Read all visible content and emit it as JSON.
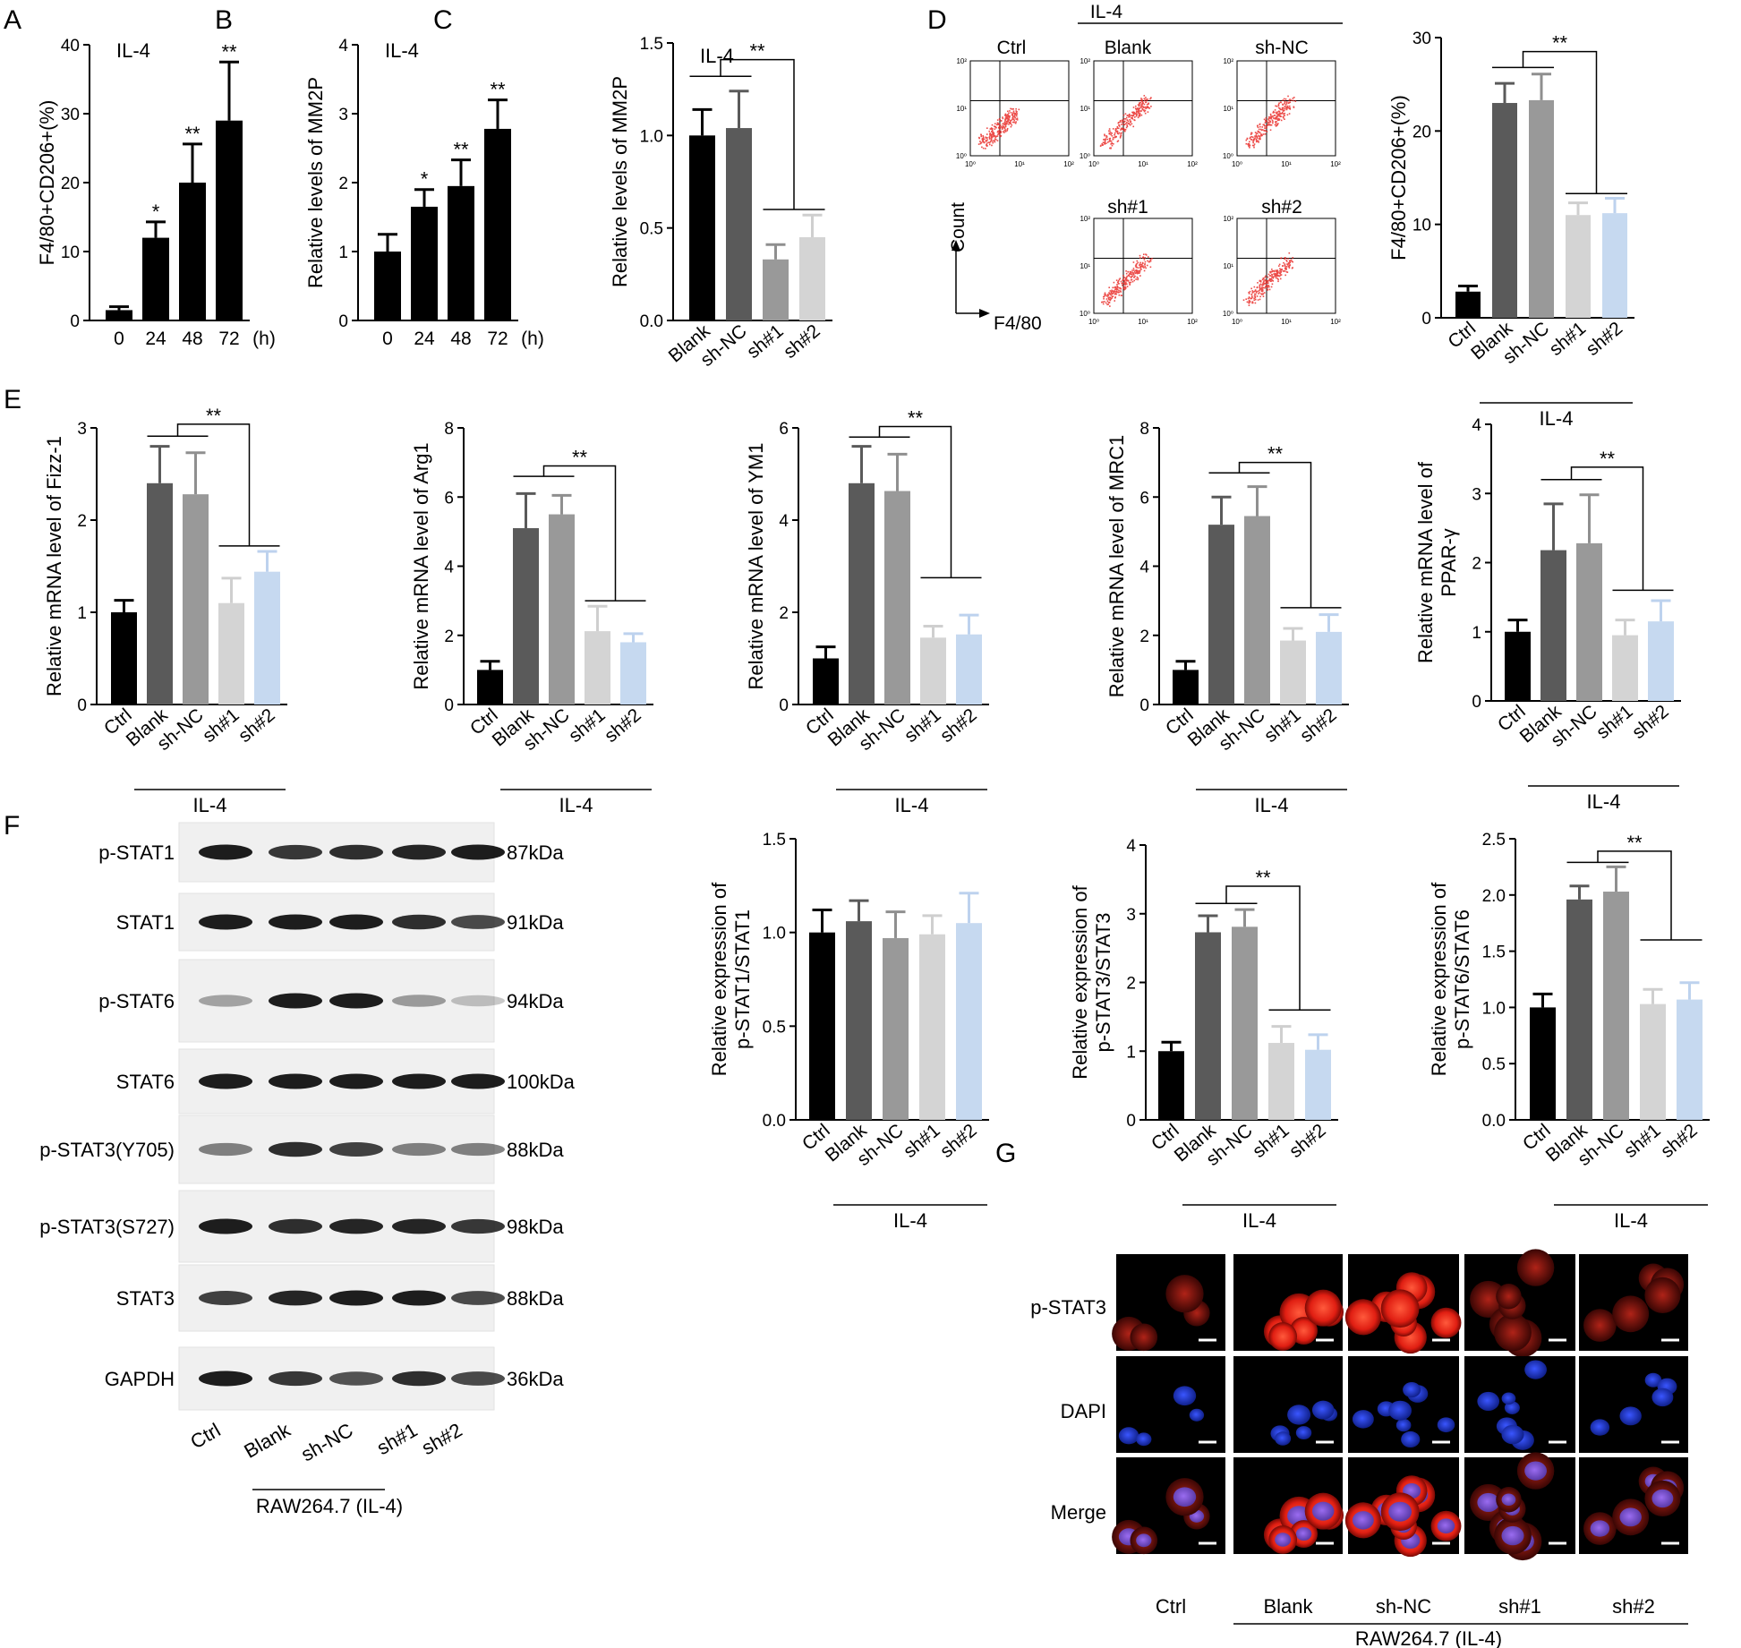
{
  "panels": {
    "A": "A",
    "B": "B",
    "C": "C",
    "D": "D",
    "E": "E",
    "F": "F",
    "G": "G"
  },
  "groups": {
    "il4": "IL-4",
    "raw": "RAW264.7 (IL-4)"
  },
  "stars": {
    "one": "*",
    "two": "**"
  },
  "flow": {
    "labels": [
      "Ctrl",
      "Blank",
      "sh-NC",
      "sh#1",
      "sh#2"
    ],
    "y_label": "Count",
    "x_label": "F4/80",
    "ticks": [
      "10⁰",
      "10¹",
      "10²"
    ]
  },
  "western": {
    "proteins": [
      "p-STAT1",
      "STAT1",
      "p-STAT6",
      "STAT6",
      "p-STAT3(Y705)",
      "p-STAT3(S727)",
      "STAT3",
      "GAPDH"
    ],
    "sizes": [
      "87kDa",
      "91kDa",
      "94kDa",
      "100kDa",
      "88kDa",
      "98kDa",
      "88kDa",
      "36kDa"
    ],
    "lanes": [
      "Ctrl",
      "Blank",
      "sh-NC",
      "sh#1",
      "sh#2"
    ]
  },
  "if_panel": {
    "rows": [
      "p-STAT3",
      "DAPI",
      "Merge"
    ],
    "cols": [
      "Ctrl",
      "Blank",
      "sh-NC",
      "sh#1",
      "sh#2"
    ]
  },
  "colors": {
    "black": "#000000",
    "darkgray": "#5a5a5a",
    "midgray": "#999999",
    "lightgray": "#d4d4d4",
    "lightblue": "#c6d9f0"
  },
  "chart_data": [
    {
      "id": "A",
      "type": "bar",
      "categories": [
        "0",
        "24",
        "48",
        "72"
      ],
      "values": [
        1.5,
        12,
        20,
        29
      ],
      "errors": [
        0.5,
        2.3,
        5.6,
        8.5
      ],
      "ylabel": "F4/80+CD206+(%)",
      "xunit": "(h)",
      "ylim": [
        0,
        40
      ],
      "yticks": [
        "0",
        "10",
        "20",
        "30",
        "40"
      ],
      "inset": "IL-4",
      "sig": [
        "",
        "*",
        "**",
        "**"
      ]
    },
    {
      "id": "B",
      "type": "bar",
      "categories": [
        "0",
        "24",
        "48",
        "72"
      ],
      "values": [
        1.0,
        1.65,
        1.95,
        2.78
      ],
      "errors": [
        0.25,
        0.25,
        0.38,
        0.42
      ],
      "ylabel": "Relative levels of MM2P",
      "xunit": "(h)",
      "ylim": [
        0,
        4
      ],
      "yticks": [
        "0",
        "1",
        "2",
        "3",
        "4"
      ],
      "inset": "IL-4",
      "sig": [
        "",
        "*",
        "**",
        "**"
      ]
    },
    {
      "id": "C",
      "type": "bar",
      "categories": [
        "Blank",
        "sh-NC",
        "sh#1",
        "sh#2"
      ],
      "values": [
        1.0,
        1.04,
        0.33,
        0.45
      ],
      "errors": [
        0.14,
        0.2,
        0.08,
        0.12
      ],
      "ylabel": "Relative levels of MM2P",
      "ylim": [
        0,
        1.5
      ],
      "yticks": [
        "0.0",
        "0.5",
        "1.0",
        "1.5"
      ],
      "inset": "IL-4"
    },
    {
      "id": "D",
      "type": "bar",
      "categories": [
        "Ctrl",
        "Blank",
        "sh-NC",
        "sh#1",
        "sh#2"
      ],
      "values": [
        2.8,
        23,
        23.3,
        11,
        11.2
      ],
      "errors": [
        0.6,
        2.1,
        2.8,
        1.3,
        1.6
      ],
      "ylabel": "F4/80+CD206+(%)",
      "ylim": [
        0,
        30
      ],
      "yticks": [
        "0",
        "10",
        "20",
        "30"
      ]
    },
    {
      "id": "E1",
      "type": "bar",
      "categories": [
        "Ctrl",
        "Blank",
        "sh-NC",
        "sh#1",
        "sh#2"
      ],
      "values": [
        1.0,
        2.4,
        2.28,
        1.1,
        1.44
      ],
      "errors": [
        0.13,
        0.4,
        0.45,
        0.27,
        0.22
      ],
      "ylabel": "Relative mRNA level of Fizz-1",
      "ylim": [
        0,
        3
      ],
      "yticks": [
        "0",
        "1",
        "2",
        "3"
      ]
    },
    {
      "id": "E2",
      "type": "bar",
      "categories": [
        "Ctrl",
        "Blank",
        "sh-NC",
        "sh#1",
        "sh#2"
      ],
      "values": [
        1.0,
        5.1,
        5.5,
        2.12,
        1.8
      ],
      "errors": [
        0.25,
        1.0,
        0.55,
        0.72,
        0.25
      ],
      "ylabel": "Relative mRNA level of Arg1",
      "ylim": [
        0,
        8
      ],
      "yticks": [
        "0",
        "2",
        "4",
        "6",
        "8"
      ]
    },
    {
      "id": "E3",
      "type": "bar",
      "categories": [
        "Ctrl",
        "Blank",
        "sh-NC",
        "sh#1",
        "sh#2"
      ],
      "values": [
        1.0,
        4.8,
        4.63,
        1.45,
        1.52
      ],
      "errors": [
        0.25,
        0.8,
        0.8,
        0.25,
        0.42
      ],
      "ylabel": "Relative mRNA level of YM1",
      "ylim": [
        0,
        6
      ],
      "yticks": [
        "0",
        "2",
        "4",
        "6"
      ]
    },
    {
      "id": "E4",
      "type": "bar",
      "categories": [
        "Ctrl",
        "Blank",
        "sh-NC",
        "sh#1",
        "sh#2"
      ],
      "values": [
        1.0,
        5.2,
        5.45,
        1.85,
        2.1
      ],
      "errors": [
        0.25,
        0.8,
        0.85,
        0.35,
        0.5
      ],
      "ylabel": "Relative mRNA level of MRC1",
      "ylim": [
        0,
        8
      ],
      "yticks": [
        "0",
        "2",
        "4",
        "6",
        "8"
      ]
    },
    {
      "id": "E5",
      "type": "bar",
      "categories": [
        "Ctrl",
        "Blank",
        "sh-NC",
        "sh#1",
        "sh#2"
      ],
      "values": [
        1.0,
        2.18,
        2.28,
        0.95,
        1.15
      ],
      "errors": [
        0.17,
        0.67,
        0.7,
        0.22,
        0.3
      ],
      "ylabel": "Relative mRNA level of\nPPAR-γ",
      "ylim": [
        0,
        4
      ],
      "yticks": [
        "0",
        "1",
        "2",
        "3",
        "4"
      ]
    },
    {
      "id": "F1",
      "type": "bar",
      "categories": [
        "Ctrl",
        "Blank",
        "sh-NC",
        "sh#1",
        "sh#2"
      ],
      "values": [
        1.0,
        1.06,
        0.97,
        0.99,
        1.05
      ],
      "errors": [
        0.12,
        0.11,
        0.14,
        0.1,
        0.16
      ],
      "ylabel": "Relative expression of\np-STAT1/STAT1",
      "ylim": [
        0,
        1.5
      ],
      "yticks": [
        "0.0",
        "0.5",
        "1.0",
        "1.5"
      ]
    },
    {
      "id": "F2",
      "type": "bar",
      "categories": [
        "Ctrl",
        "Blank",
        "sh-NC",
        "sh#1",
        "sh#2"
      ],
      "values": [
        1.0,
        2.73,
        2.81,
        1.12,
        1.02
      ],
      "errors": [
        0.13,
        0.24,
        0.25,
        0.24,
        0.22
      ],
      "ylabel": "Relative expression of\np-STAT3/STAT3",
      "ylim": [
        0,
        4
      ],
      "yticks": [
        "0",
        "1",
        "2",
        "3",
        "4"
      ]
    },
    {
      "id": "F3",
      "type": "bar",
      "categories": [
        "Ctrl",
        "Blank",
        "sh-NC",
        "sh#1",
        "sh#2"
      ],
      "values": [
        1.0,
        1.96,
        2.03,
        1.03,
        1.07
      ],
      "errors": [
        0.12,
        0.12,
        0.22,
        0.13,
        0.15
      ],
      "ylabel": "Relative expression of\np-STAT6/STAT6",
      "ylim": [
        0,
        2.5
      ],
      "yticks": [
        "0.0",
        "0.5",
        "1.0",
        "1.5",
        "2.0",
        "2.5"
      ]
    }
  ]
}
